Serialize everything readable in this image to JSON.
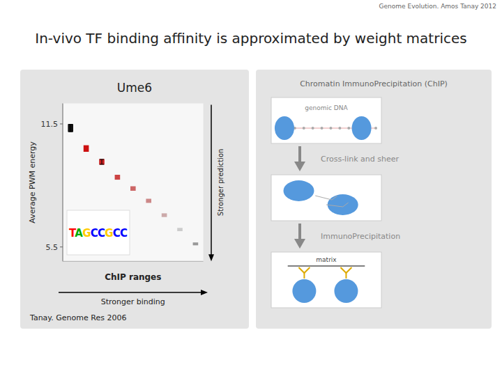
{
  "chart_data": {
    "type": "bar",
    "title": "In-vivo TF binding affinity is approximated by weight matrices",
    "subtitle": "Ume6",
    "xlabel": "ChIP ranges",
    "ylabel": "Average PWM energy",
    "categories": [
      null,
      null,
      null,
      null,
      null,
      null,
      null,
      null,
      null
    ],
    "values": [
      11.3,
      10.3,
      9.65,
      8.9,
      8.35,
      7.75,
      7.05,
      6.35,
      5.65
    ],
    "spans": [
      0.38,
      0.32,
      0.28,
      0.24,
      0.22,
      0.2,
      0.18,
      0.16,
      0.14
    ],
    "errors": [
      0.18,
      null,
      0.12,
      null,
      null,
      null,
      null,
      null,
      null
    ],
    "colors": [
      "#111111",
      "#cc1111",
      "#cc2222",
      "#cc4444",
      "#cc6666",
      "#cc8888",
      "#ccaaaa",
      "#cccccc",
      "#999999"
    ],
    "ylim": [
      4.8,
      12.5
    ],
    "yticks": [
      5.5,
      11.5
    ],
    "tick_labels": "y",
    "grid": false,
    "logo": {
      "text": "TAGCCGCC",
      "colors": {
        "T": "#ff0000",
        "A": "#00aa00",
        "G": "#ffcc00",
        "C": "#0000ff"
      }
    },
    "annotations": [
      "Stronger prediction",
      "Stronger binding",
      "Tanay. Genome Res 2006",
      "Genome Evolution. Amos Tanay 2012",
      "Chromatin ImmunoPrecipitation (ChIP)",
      "Cross-link and sheer",
      "ImmunoPrecipitation",
      "genomic DNA",
      "matrix"
    ]
  }
}
